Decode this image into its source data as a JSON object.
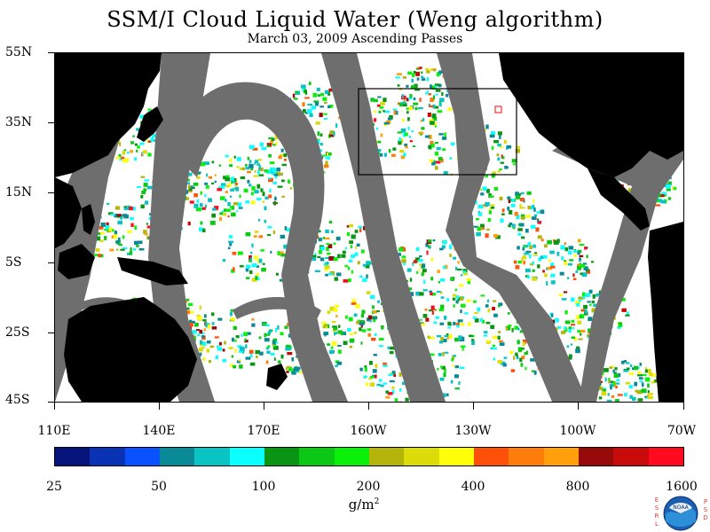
{
  "title": "SSM/I Cloud Liquid Water (Weng algorithm)",
  "subtitle": "March 03, 2009  Ascending Passes",
  "y_axis_labels": [
    "55N",
    "35N",
    "15N",
    "5S",
    "25S",
    "45S"
  ],
  "x_axis_labels": [
    "110E",
    "140E",
    "170E",
    "160W",
    "130W",
    "100W",
    "70W"
  ],
  "colorbar": {
    "colors": [
      "#05137a",
      "#0a32b4",
      "#0a52ff",
      "#0a8a96",
      "#0ac3c3",
      "#0affff",
      "#0a9614",
      "#0ac814",
      "#0af00a",
      "#b4b40a",
      "#dcdc0a",
      "#ffff0a",
      "#ff500a",
      "#ff7d0a",
      "#ffa00a",
      "#960a0a",
      "#c80a0a",
      "#ff0a1e"
    ],
    "labels": [
      "25",
      "50",
      "100",
      "200",
      "400",
      "800",
      "1600"
    ]
  },
  "units": "g/m",
  "units_superscript": "2",
  "logo": {
    "left_letters": [
      "E",
      "S",
      "R",
      "L"
    ],
    "right_letters": [
      "P",
      "S",
      "D"
    ],
    "center": "NOAA"
  },
  "colors": {
    "land": "#000000",
    "no_data_gap": "#6e6e6e",
    "ocean_clear": "#ffffff"
  },
  "map_layers": [
    "land",
    "swath-gap",
    "cloud-liquid-water",
    "focus-box"
  ]
}
